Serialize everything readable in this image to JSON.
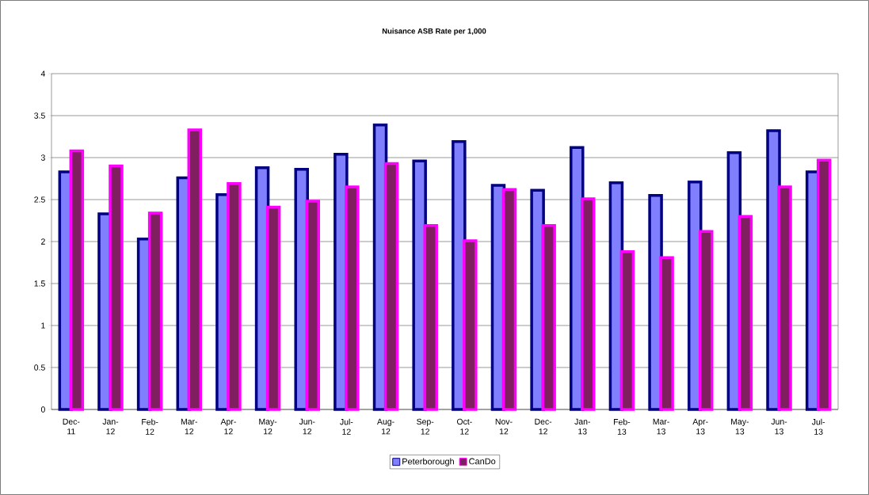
{
  "chart_data": {
    "type": "bar",
    "title": "Nuisance ASB Rate per 1,000",
    "categories": [
      "Dec-11",
      "Jan-12",
      "Feb-12",
      "Mar-12",
      "Apr-12",
      "May-12",
      "Jun-12",
      "Jul-12",
      "Aug-12",
      "Sep-12",
      "Oct-12",
      "Nov-12",
      "Dec-12",
      "Jan-13",
      "Feb-13",
      "Mar-13",
      "Apr-13",
      "May-13",
      "Jun-13",
      "Jul-13"
    ],
    "series": [
      {
        "name": "Peterborough",
        "color": "#8080ff",
        "values": [
          2.83,
          2.33,
          2.03,
          2.76,
          2.56,
          2.88,
          2.86,
          3.04,
          3.39,
          2.96,
          3.19,
          2.67,
          2.61,
          3.12,
          2.7,
          2.55,
          2.71,
          3.06,
          3.32,
          2.83
        ]
      },
      {
        "name": "CanDo",
        "color": "#801f60",
        "values": [
          3.08,
          2.9,
          2.34,
          3.33,
          2.69,
          2.41,
          2.48,
          2.65,
          2.93,
          2.19,
          2.01,
          2.62,
          2.19,
          2.51,
          1.88,
          1.81,
          2.12,
          2.3,
          2.65,
          2.97
        ]
      }
    ],
    "ylim": [
      0,
      4
    ],
    "yticks": [
      0,
      0.5,
      1,
      1.5,
      2,
      2.5,
      3,
      3.5,
      4
    ],
    "grid": "y",
    "legend": "bottom"
  }
}
